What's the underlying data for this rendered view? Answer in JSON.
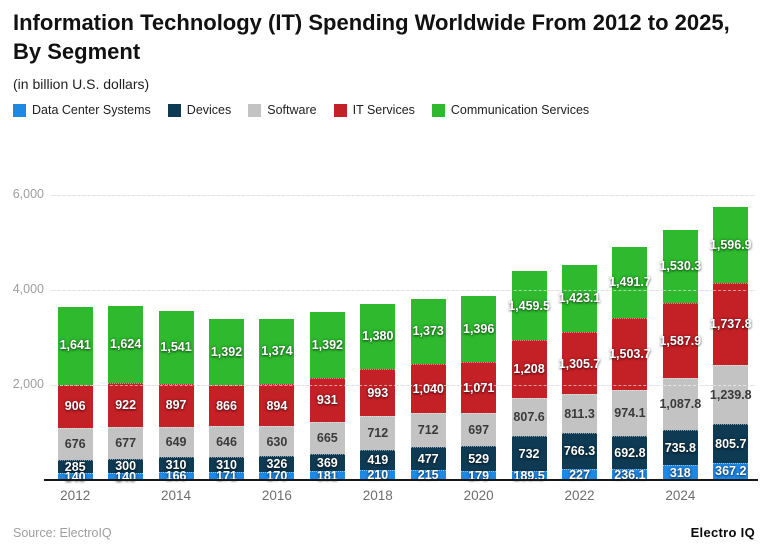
{
  "header": {
    "title": "Information Technology (IT) Spending Worldwide From 2012 to 2025, By Segment",
    "subtitle": "(in billion U.S. dollars)"
  },
  "legend": {
    "items": [
      {
        "label": "Data Center Systems",
        "color": "#1e88e5"
      },
      {
        "label": "Devices",
        "color": "#0f3a53"
      },
      {
        "label": "Software",
        "color": "#c3c3c3"
      },
      {
        "label": "IT Services",
        "color": "#c42127"
      },
      {
        "label": "Communication Services",
        "color": "#2eb92e"
      }
    ]
  },
  "chart_data": {
    "type": "bar",
    "stacked": true,
    "title": "Information Technology (IT) Spending Worldwide From 2012 to 2025, By Segment",
    "subtitle": "(in billion U.S. dollars)",
    "xlabel": "",
    "ylabel": "",
    "grid": true,
    "legend_position": "top",
    "categories": [
      "2012",
      "2013",
      "2014",
      "2015",
      "2016",
      "2017",
      "2018",
      "2019",
      "2020",
      "2021",
      "2022",
      "2023",
      "2024",
      "2025"
    ],
    "x_tick_labels": [
      "2012",
      "2014",
      "2016",
      "2018",
      "2020",
      "2022",
      "2024"
    ],
    "x_tick_indices": [
      0,
      2,
      4,
      6,
      8,
      10,
      12
    ],
    "yaxis": {
      "min": 0,
      "max": 6000,
      "ticks": [
        2000,
        4000,
        6000
      ],
      "tick_labels": [
        "2,000",
        "4,000",
        "6,000"
      ]
    },
    "series": [
      {
        "name": "Data Center Systems",
        "color": "#1e88e5",
        "label_style": "light",
        "values": [
          140,
          140,
          166,
          171,
          170,
          181,
          210,
          215,
          179,
          189.5,
          227,
          236.1,
          318,
          367.2
        ],
        "labels": [
          "140",
          "140",
          "166",
          "171",
          "170",
          "181",
          "210",
          "215",
          "179",
          "189.5",
          "227",
          "236.1",
          "318",
          "367.2"
        ]
      },
      {
        "name": "Devices",
        "color": "#0f3a53",
        "label_style": "light",
        "values": [
          285,
          300,
          310,
          310,
          326,
          369,
          419,
          477,
          529,
          732,
          766.3,
          692.8,
          735.8,
          805.7
        ],
        "labels": [
          "285",
          "300",
          "310",
          "310",
          "326",
          "369",
          "419",
          "477",
          "529",
          "732",
          "766.3",
          "692.8",
          "735.8",
          "805.7"
        ]
      },
      {
        "name": "Software",
        "color": "#c3c3c3",
        "label_style": "dark",
        "values": [
          676,
          677,
          649,
          646,
          630,
          665,
          712,
          712,
          697,
          807.6,
          811.3,
          974.1,
          1087.8,
          1239.8
        ],
        "labels": [
          "676",
          "677",
          "649",
          "646",
          "630",
          "665",
          "712",
          "712",
          "697",
          "807.6",
          "811.3",
          "974.1",
          "1,087.8",
          "1,239.8"
        ]
      },
      {
        "name": "IT Services",
        "color": "#c42127",
        "label_style": "light",
        "values": [
          906,
          922,
          897,
          866,
          894,
          931,
          993,
          1040,
          1071,
          1208,
          1305.7,
          1503.7,
          1587.9,
          1737.8
        ],
        "labels": [
          "906",
          "922",
          "897",
          "866",
          "894",
          "931",
          "993",
          "1,040",
          "1,071",
          "1,208",
          "1,305.7",
          "1,503.7",
          "1,587.9",
          "1,737.8"
        ]
      },
      {
        "name": "Communication Services",
        "color": "#2eb92e",
        "label_style": "light",
        "values": [
          1641,
          1624,
          1541,
          1392,
          1374,
          1392,
          1380,
          1373,
          1396,
          1459.5,
          1423.1,
          1491.7,
          1530.3,
          1596.9
        ],
        "labels": [
          "1,641",
          "1,624",
          "1,541",
          "1,392",
          "1,374",
          "1,392",
          "1,380",
          "1,373",
          "1,396",
          "1,459.5",
          "1,423.1",
          "1,491.7",
          "1,530.3",
          "1,596.9"
        ]
      }
    ]
  },
  "footer": {
    "source": "Source: ElectroIQ",
    "brand": "Electro IQ"
  }
}
